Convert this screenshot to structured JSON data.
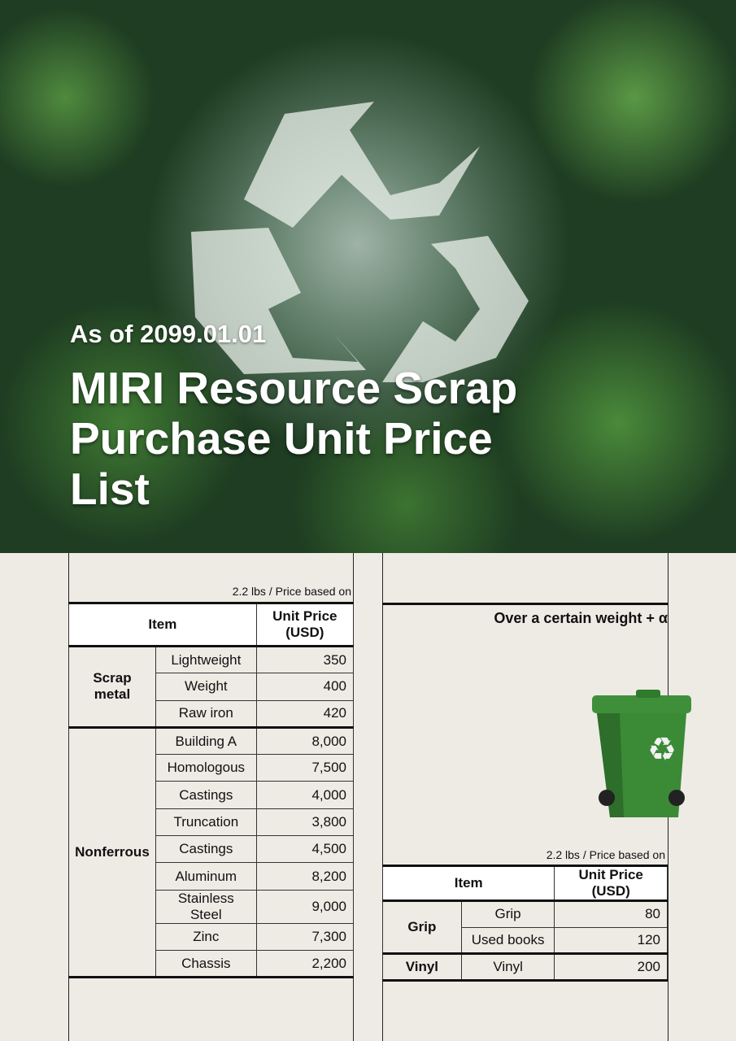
{
  "header": {
    "date": "As of 2099.01.01",
    "title": "MIRI Resource Scrap Purchase Unit Price List"
  },
  "left_table": {
    "note": "2.2 lbs / Price based on",
    "headers": {
      "item": "Item",
      "price": "Unit Price (USD)"
    },
    "groups": [
      {
        "name": "Scrap metal",
        "rows": [
          {
            "item": "Lightweight",
            "price": "350"
          },
          {
            "item": "Weight",
            "price": "400"
          },
          {
            "item": "Raw iron",
            "price": "420"
          }
        ]
      },
      {
        "name": "Nonferrous",
        "rows": [
          {
            "item": "Building A",
            "price": "8,000"
          },
          {
            "item": "Homologous",
            "price": "7,500"
          },
          {
            "item": "Castings",
            "price": "4,000"
          },
          {
            "item": "Truncation",
            "price": "3,800"
          },
          {
            "item": "Castings",
            "price": "4,500"
          },
          {
            "item": "Aluminum",
            "price": "8,200"
          },
          {
            "item": "Stainless Steel",
            "price": "9,000"
          },
          {
            "item": "Zinc",
            "price": "7,300"
          },
          {
            "item": "Chassis",
            "price": "2,200"
          }
        ]
      }
    ]
  },
  "right": {
    "over_text": "Over a certain weight + α",
    "note": "2.2 lbs / Price based on",
    "headers": {
      "item": "Item",
      "price": "Unit Price (USD)"
    },
    "groups": [
      {
        "name": "Grip",
        "rows": [
          {
            "item": "Grip",
            "price": "80"
          },
          {
            "item": "Used books",
            "price": "120"
          }
        ]
      },
      {
        "name": "Vinyl",
        "rows": [
          {
            "item": "Vinyl",
            "price": "200"
          }
        ]
      }
    ]
  },
  "colors": {
    "bin": "#3f8f3a",
    "background": "#eeebe5"
  }
}
